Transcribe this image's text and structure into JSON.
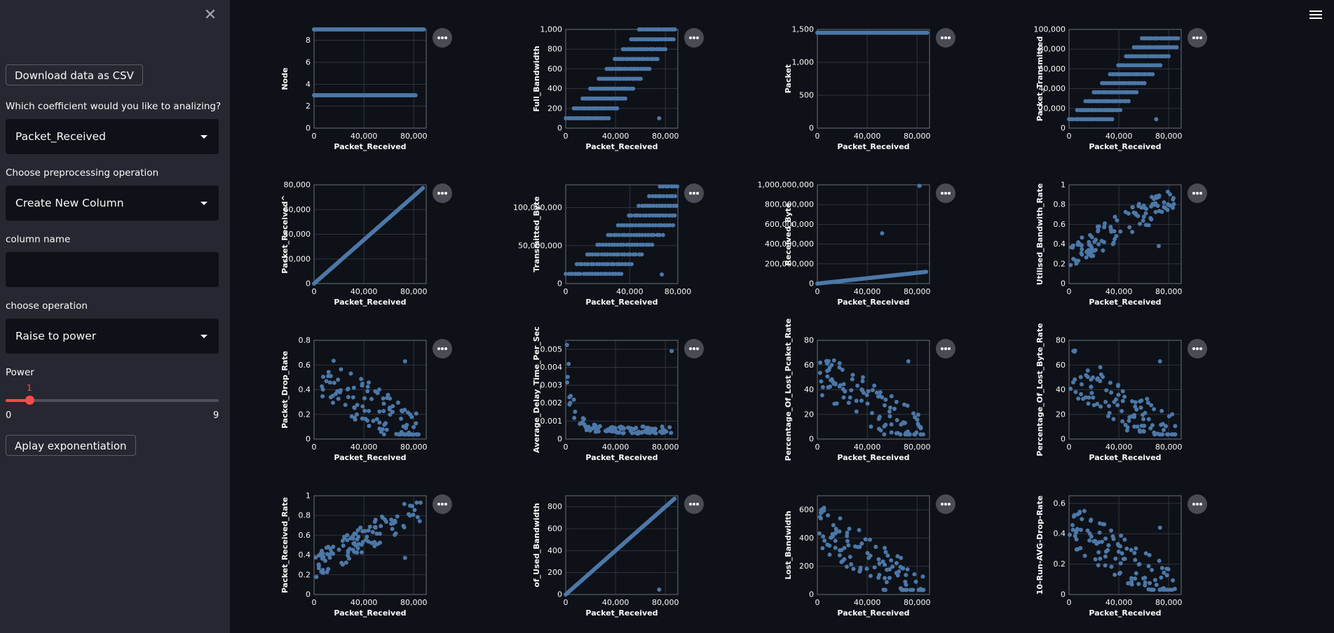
{
  "sidebar": {
    "close_icon": "close-icon",
    "download_label": "Download data as CSV",
    "coef_label": "Which coefficient would you like to analizing?",
    "coef_value": "Packet_Received",
    "preproc_label": "Choose preprocessing operation",
    "preproc_value": "Create New Column",
    "colname_label": "column name",
    "colname_value": "",
    "op_label": "choose operation",
    "op_value": "Raise to power",
    "power_label": "Power",
    "power_value": 1,
    "power_value_text": "1",
    "power_min": "0",
    "power_max": "9",
    "apply_label": "Aplay exponentiation"
  },
  "menu_icon": "hamburger-menu-icon",
  "theme": {
    "point_color": "#4c78a8",
    "grid_color": "#31333f",
    "axis_color": "#fafafa",
    "accent": "#ff4b4b",
    "background": "#0e1117",
    "sidebar": "#262730"
  },
  "chart_data": [
    {
      "type": "scatter",
      "xlabel": "Packet_Received",
      "ylabel": "Node",
      "xlim": [
        0,
        90000
      ],
      "ylim": [
        0,
        9
      ],
      "xticks": [
        0,
        40000,
        80000
      ],
      "yticks": [
        0,
        2,
        4,
        6,
        8
      ],
      "pattern": "node"
    },
    {
      "type": "scatter",
      "xlabel": "Packet_Received",
      "ylabel": "Full_Bandwidth",
      "xlim": [
        0,
        90000
      ],
      "ylim": [
        0,
        1000
      ],
      "xticks": [
        0,
        40000,
        80000
      ],
      "yticks": [
        0,
        200,
        400,
        600,
        800,
        1000
      ],
      "pattern": "levels",
      "scale": 1000,
      "outliers": [
        [
          75000,
          100
        ]
      ]
    },
    {
      "type": "scatter",
      "xlabel": "Packet_Received",
      "ylabel": "Packet",
      "xlim": [
        0,
        90000
      ],
      "ylim": [
        0,
        1500
      ],
      "xticks": [
        0,
        40000,
        80000
      ],
      "yticks": [
        0,
        500,
        1000,
        1500
      ],
      "pattern": "constant",
      "value": 1450
    },
    {
      "type": "scatter",
      "xlabel": "Packet_Received",
      "ylabel": "Packet_Transmitted",
      "xlim": [
        0,
        90000
      ],
      "ylim": [
        0,
        100000
      ],
      "xticks": [
        0,
        40000,
        80000
      ],
      "yticks": [
        0,
        20000,
        40000,
        60000,
        80000,
        100000
      ],
      "pattern": "levels",
      "scale": 91000,
      "outliers": [
        [
          70000,
          9000
        ]
      ]
    },
    {
      "type": "scatter",
      "xlabel": "Packet_Received",
      "ylabel": "Packet_Received^",
      "xlim": [
        0,
        90000
      ],
      "ylim": [
        0,
        80000
      ],
      "xticks": [
        0,
        40000,
        80000
      ],
      "yticks": [
        0,
        20000,
        40000,
        60000,
        80000
      ],
      "pattern": "line",
      "max": 78000
    },
    {
      "type": "scatter",
      "xlabel": "Packet_Received",
      "ylabel": "Transmitted_Byte",
      "xlim": [
        0,
        70000
      ],
      "ylim": [
        0,
        130000000
      ],
      "xticks": [
        0,
        40000,
        80000
      ],
      "yticks": [
        0,
        50000000,
        100000000
      ],
      "pattern": "levels",
      "scale": 128000000,
      "outliers": [
        [
          60000,
          12000000
        ]
      ]
    },
    {
      "type": "scatter",
      "xlabel": "Packet_Received",
      "ylabel": "Received_Byte",
      "xlim": [
        0,
        90000
      ],
      "ylim": [
        0,
        1000000000
      ],
      "xticks": [
        0,
        40000,
        80000
      ],
      "yticks": [
        0,
        200000000,
        400000000,
        600000000,
        800000000,
        1000000000
      ],
      "pattern": "line",
      "max": 120000000,
      "outliers": [
        [
          52000,
          510000000
        ],
        [
          82000,
          990000000
        ]
      ]
    },
    {
      "type": "scatter",
      "xlabel": "Packet_Received",
      "ylabel": "Utilised_Bandwith_Rate",
      "xlim": [
        0,
        90000
      ],
      "ylim": [
        0,
        1
      ],
      "xticks": [
        0,
        40000,
        80000
      ],
      "yticks": [
        0,
        0.2,
        0.4,
        0.6,
        0.8,
        1.0
      ],
      "pattern": "rising",
      "outliers": [
        [
          72000,
          0.38
        ]
      ]
    },
    {
      "type": "scatter",
      "xlabel": "Packet_Received",
      "ylabel": "Packet_Drop_Rate",
      "xlim": [
        0,
        90000
      ],
      "ylim": [
        0,
        0.8
      ],
      "xticks": [
        0,
        40000,
        80000
      ],
      "yticks": [
        0,
        0.2,
        0.4,
        0.6,
        0.8
      ],
      "pattern": "falling",
      "top": 0.75,
      "outliers": [
        [
          73000,
          0.63
        ]
      ]
    },
    {
      "type": "scatter",
      "xlabel": "Packet_Received",
      "ylabel": "Average_Delay_Time_Per_Sec",
      "xlim": [
        0,
        90000
      ],
      "ylim": [
        0,
        0.0055
      ],
      "xticks": [
        0,
        40000,
        80000
      ],
      "yticks": [
        0,
        0.001,
        0.002,
        0.003,
        0.004,
        0.005
      ],
      "pattern": "decay",
      "outliers": [
        [
          85000,
          0.0049
        ]
      ]
    },
    {
      "type": "scatter",
      "xlabel": "Packet_Received",
      "ylabel": "Percentage_Of_Lost_Pcaket_Rate",
      "xlim": [
        0,
        90000
      ],
      "ylim": [
        0,
        80
      ],
      "xticks": [
        0,
        40000,
        80000
      ],
      "yticks": [
        0,
        20,
        40,
        60,
        80
      ],
      "pattern": "falling",
      "top": 75,
      "outliers": [
        [
          73000,
          63
        ]
      ]
    },
    {
      "type": "scatter",
      "xlabel": "Packet_Received",
      "ylabel": "Percentage_Of_Lost_Byte_Rate",
      "xlim": [
        0,
        90000
      ],
      "ylim": [
        0,
        80
      ],
      "xticks": [
        0,
        40000,
        80000
      ],
      "yticks": [
        0,
        20,
        40,
        60,
        80
      ],
      "pattern": "falling",
      "top": 75,
      "outliers": [
        [
          73000,
          63
        ]
      ]
    },
    {
      "type": "scatter",
      "xlabel": "Packet_Received",
      "ylabel": "Packet_Received_Rate",
      "xlim": [
        0,
        90000
      ],
      "ylim": [
        0,
        1
      ],
      "xticks": [
        0,
        40000,
        80000
      ],
      "yticks": [
        0,
        0.2,
        0.4,
        0.6,
        0.8,
        1.0
      ],
      "pattern": "rising",
      "outliers": [
        [
          73000,
          0.37
        ]
      ]
    },
    {
      "type": "scatter",
      "xlabel": "Packet_Received",
      "ylabel": "of_Used_Bandwidth",
      "xlim": [
        0,
        90000
      ],
      "ylim": [
        0,
        900
      ],
      "xticks": [
        0,
        40000,
        80000
      ],
      "yticks": [
        0,
        200,
        400,
        600,
        800
      ],
      "pattern": "line",
      "max": 880,
      "outliers": [
        [
          75000,
          45
        ]
      ]
    },
    {
      "type": "scatter",
      "xlabel": "Packet_Received",
      "ylabel": "Lost_Bandwidth",
      "xlim": [
        0,
        90000
      ],
      "ylim": [
        0,
        700
      ],
      "xticks": [
        0,
        40000,
        80000
      ],
      "yticks": [
        0,
        200,
        400,
        600
      ],
      "pattern": "falling",
      "top": 650
    },
    {
      "type": "scatter",
      "xlabel": "Packet_Received",
      "ylabel": "10-Run-AVG-Drop-Rate",
      "xlim": [
        0,
        90000
      ],
      "ylim": [
        0,
        0.65
      ],
      "xticks": [
        0,
        40000,
        80000
      ],
      "yticks": [
        0,
        0.2,
        0.4,
        0.6
      ],
      "pattern": "falling",
      "top": 0.62,
      "outliers": [
        [
          73000,
          0.44
        ]
      ]
    }
  ]
}
